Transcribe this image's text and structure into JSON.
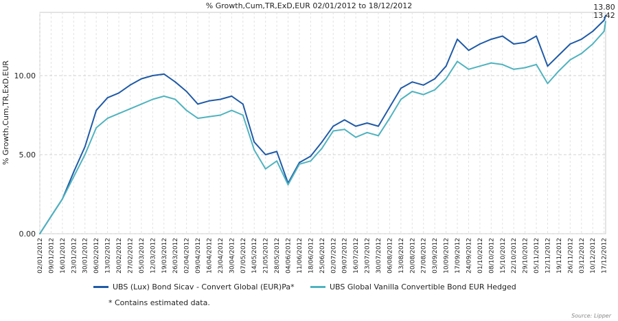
{
  "chart_data": {
    "type": "line",
    "title": "% Growth,Cum,TR,ExD,EUR 02/01/2012 to 18/12/2012",
    "ylabel": "% Growth,Cum,TR,ExD,EUR",
    "xlabel": "",
    "ylim": [
      0,
      14
    ],
    "y_ticks": [
      "0.00",
      "5.00",
      "10.00"
    ],
    "x_ticks": [
      "02/01/2012",
      "09/01/2012",
      "16/01/2012",
      "23/01/2012",
      "30/01/2012",
      "06/02/2012",
      "13/02/2012",
      "20/02/2012",
      "27/02/2012",
      "05/03/2012",
      "12/03/2012",
      "19/03/2012",
      "26/03/2012",
      "02/04/2012",
      "09/04/2012",
      "16/04/2012",
      "23/04/2012",
      "30/04/2012",
      "07/05/2012",
      "14/05/2012",
      "21/05/2012",
      "28/05/2012",
      "04/06/2012",
      "11/06/2012",
      "18/06/2012",
      "25/06/2012",
      "02/07/2012",
      "09/07/2012",
      "16/07/2012",
      "23/07/2012",
      "30/07/2012",
      "06/08/2012",
      "13/08/2012",
      "20/08/2012",
      "27/08/2012",
      "03/09/2012",
      "10/09/2012",
      "17/09/2012",
      "24/09/2012",
      "01/10/2012",
      "08/10/2012",
      "15/10/2012",
      "22/10/2012",
      "29/10/2012",
      "05/11/2012",
      "12/11/2012",
      "19/11/2012",
      "26/11/2012",
      "03/12/2012",
      "10/12/2012",
      "17/12/2012"
    ],
    "grid": true,
    "legend_placement": "bottom",
    "end_labels": [
      "13.80",
      "13.42"
    ],
    "series": [
      {
        "name": "UBS (Lux) Bond Sicav - Convert Global (EUR)Pa*",
        "color": "#1f5aa6",
        "x": [
          "02/01/2012",
          "09/01/2012",
          "16/01/2012",
          "23/01/2012",
          "30/01/2012",
          "06/02/2012",
          "13/02/2012",
          "20/02/2012",
          "27/02/2012",
          "05/03/2012",
          "12/03/2012",
          "19/03/2012",
          "26/03/2012",
          "02/04/2012",
          "09/04/2012",
          "16/04/2012",
          "23/04/2012",
          "30/04/2012",
          "07/05/2012",
          "14/05/2012",
          "21/05/2012",
          "28/05/2012",
          "04/06/2012",
          "11/06/2012",
          "18/06/2012",
          "25/06/2012",
          "02/07/2012",
          "09/07/2012",
          "16/07/2012",
          "23/07/2012",
          "30/07/2012",
          "06/08/2012",
          "13/08/2012",
          "20/08/2012",
          "27/08/2012",
          "03/09/2012",
          "10/09/2012",
          "17/09/2012",
          "24/09/2012",
          "01/10/2012",
          "08/10/2012",
          "15/10/2012",
          "22/10/2012",
          "29/10/2012",
          "05/11/2012",
          "12/11/2012",
          "19/11/2012",
          "26/11/2012",
          "03/12/2012",
          "10/12/2012",
          "17/12/2012",
          "18/12/2012"
        ],
        "values": [
          0.0,
          1.1,
          2.2,
          3.9,
          5.5,
          7.8,
          8.6,
          8.9,
          9.4,
          9.8,
          10.0,
          10.1,
          9.6,
          9.0,
          8.2,
          8.4,
          8.5,
          8.7,
          8.2,
          5.8,
          5.0,
          5.2,
          3.2,
          4.5,
          4.9,
          5.8,
          6.8,
          7.2,
          6.8,
          7.0,
          6.8,
          8.0,
          9.2,
          9.6,
          9.4,
          9.8,
          10.6,
          12.3,
          11.6,
          12.0,
          12.3,
          12.5,
          12.0,
          12.1,
          12.5,
          10.6,
          11.3,
          12.0,
          12.3,
          12.8,
          13.5,
          13.8
        ]
      },
      {
        "name": "UBS Global Vanilla Convertible Bond EUR Hedged",
        "color": "#4fb3bf",
        "x": [
          "02/01/2012",
          "09/01/2012",
          "16/01/2012",
          "23/01/2012",
          "30/01/2012",
          "06/02/2012",
          "13/02/2012",
          "20/02/2012",
          "27/02/2012",
          "05/03/2012",
          "12/03/2012",
          "19/03/2012",
          "26/03/2012",
          "02/04/2012",
          "09/04/2012",
          "16/04/2012",
          "23/04/2012",
          "30/04/2012",
          "07/05/2012",
          "14/05/2012",
          "21/05/2012",
          "28/05/2012",
          "04/06/2012",
          "11/06/2012",
          "18/06/2012",
          "25/06/2012",
          "02/07/2012",
          "09/07/2012",
          "16/07/2012",
          "23/07/2012",
          "30/07/2012",
          "06/08/2012",
          "13/08/2012",
          "20/08/2012",
          "27/08/2012",
          "03/09/2012",
          "10/09/2012",
          "17/09/2012",
          "24/09/2012",
          "01/10/2012",
          "08/10/2012",
          "15/10/2012",
          "22/10/2012",
          "29/10/2012",
          "05/11/2012",
          "12/11/2012",
          "19/11/2012",
          "26/11/2012",
          "03/12/2012",
          "10/12/2012",
          "17/12/2012",
          "18/12/2012"
        ],
        "values": [
          0.0,
          1.1,
          2.2,
          3.6,
          5.0,
          6.7,
          7.3,
          7.6,
          7.9,
          8.2,
          8.5,
          8.7,
          8.5,
          7.8,
          7.3,
          7.4,
          7.5,
          7.8,
          7.5,
          5.3,
          4.1,
          4.6,
          3.1,
          4.4,
          4.6,
          5.4,
          6.5,
          6.6,
          6.1,
          6.4,
          6.2,
          7.3,
          8.5,
          9.0,
          8.8,
          9.1,
          9.8,
          10.9,
          10.4,
          10.6,
          10.8,
          10.7,
          10.4,
          10.5,
          10.7,
          9.5,
          10.3,
          11.0,
          11.4,
          12.0,
          12.8,
          13.42
        ]
      }
    ]
  },
  "legend": {
    "series1_label": "UBS (Lux) Bond Sicav - Convert Global (EUR)Pa*",
    "series2_label": "UBS Global Vanilla Convertible Bond EUR Hedged"
  },
  "note": "*  Contains estimated data.",
  "source": "Source: Lipper"
}
